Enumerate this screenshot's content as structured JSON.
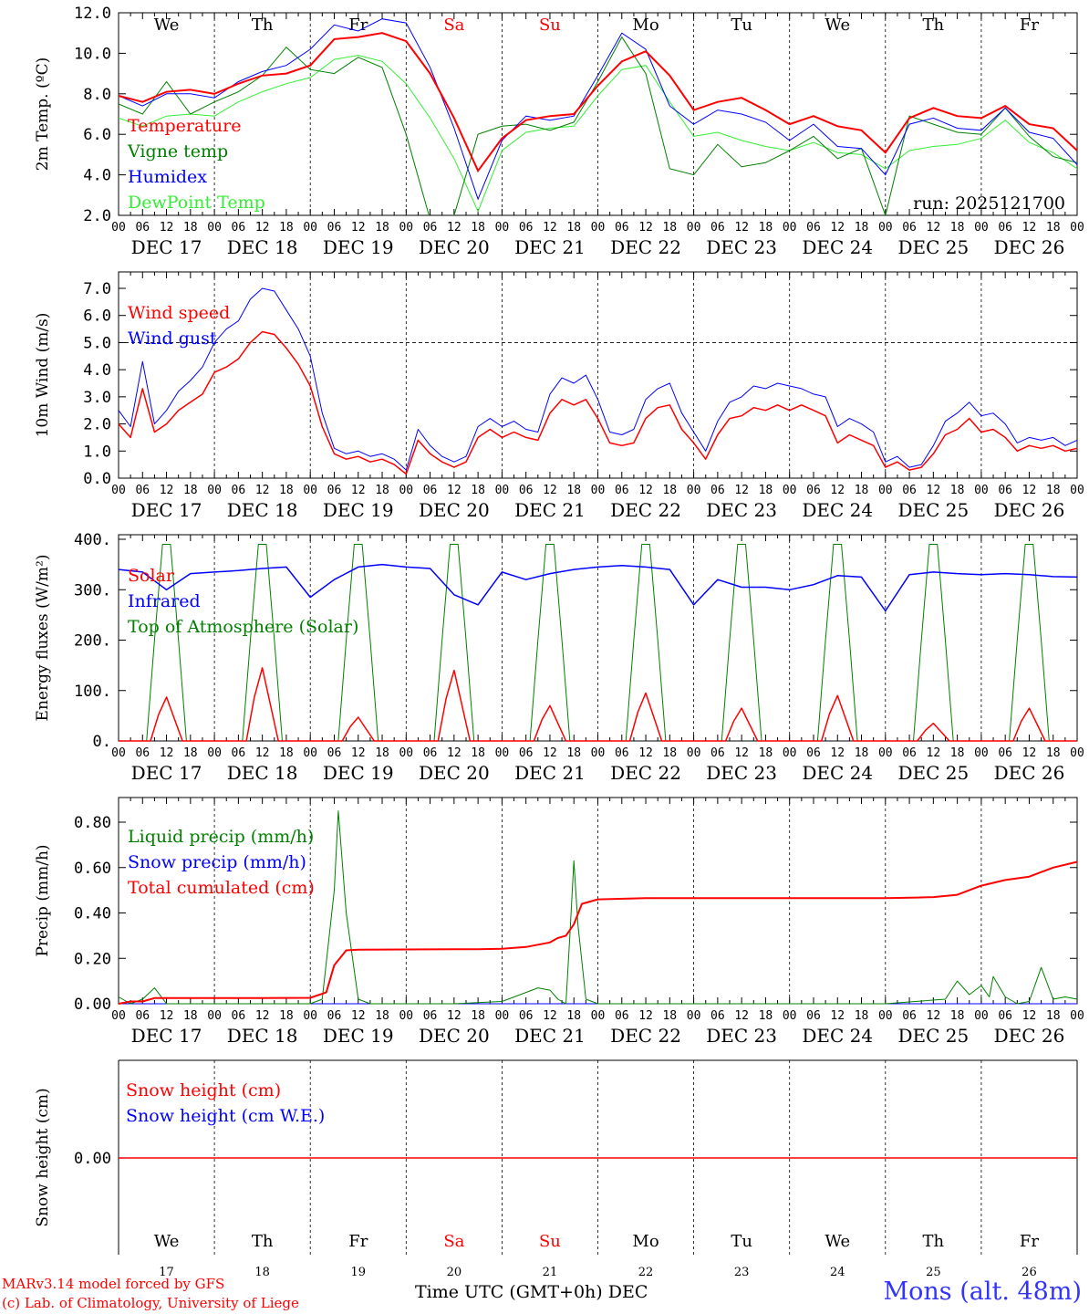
{
  "chart_data": [
    {
      "type": "line",
      "panel": "temperature",
      "ylabel": "2m Temp. (ºC)",
      "ylim": [
        2.0,
        12.0
      ],
      "yticks": [
        "2.0",
        "4.0",
        "6.0",
        "8.0",
        "10.0",
        "12.0"
      ],
      "ytick_values": [
        2,
        4,
        6,
        8,
        10,
        12
      ],
      "run_label": "run: 2025121700",
      "legend": [
        "Temperature",
        "Vigne temp",
        "Humidex",
        "DewPoint Temp"
      ],
      "x": [
        0,
        6,
        12,
        18,
        24,
        30,
        36,
        42,
        48,
        54,
        60,
        66,
        72,
        78,
        84,
        90,
        96,
        102,
        108,
        114,
        120,
        126,
        132,
        138,
        144,
        150,
        156,
        162,
        168,
        174,
        180,
        186,
        192,
        198,
        204,
        210,
        216,
        222,
        228,
        234,
        240
      ],
      "series": [
        {
          "name": "Temperature",
          "color": "#ff0000",
          "width": 2,
          "values": [
            7.9,
            7.6,
            8.1,
            8.2,
            8.0,
            8.5,
            8.9,
            9.0,
            9.4,
            10.7,
            10.8,
            11.0,
            10.6,
            9.0,
            6.8,
            4.2,
            5.8,
            6.7,
            6.9,
            7.0,
            8.4,
            9.6,
            10.1,
            8.9,
            7.2,
            7.6,
            7.8,
            7.2,
            6.5,
            6.9,
            6.4,
            6.2,
            5.1,
            6.8,
            7.3,
            6.9,
            6.8,
            7.4,
            6.5,
            6.3,
            5.2
          ]
        },
        {
          "name": "Vigne temp",
          "color": "#008000",
          "width": 1,
          "values": [
            7.5,
            7.0,
            8.6,
            7.0,
            7.6,
            8.1,
            8.9,
            10.3,
            9.2,
            9.0,
            9.8,
            9.3,
            6.0,
            1.8,
            2.0,
            6.0,
            6.4,
            6.5,
            6.2,
            6.6,
            8.6,
            10.8,
            9.0,
            4.3,
            4.0,
            5.5,
            4.4,
            4.6,
            5.2,
            5.9,
            4.8,
            5.3,
            2.0,
            6.9,
            6.5,
            6.1,
            6.0,
            7.3,
            5.9,
            4.9,
            4.6
          ]
        },
        {
          "name": "Humidex",
          "color": "#0000ff",
          "width": 1,
          "values": [
            7.9,
            7.4,
            8.0,
            8.0,
            7.8,
            8.6,
            9.1,
            9.4,
            10.2,
            11.4,
            11.1,
            11.7,
            11.5,
            9.3,
            6.3,
            2.8,
            5.7,
            6.9,
            6.7,
            6.9,
            8.9,
            11.0,
            10.2,
            7.4,
            6.5,
            7.2,
            7.0,
            6.6,
            5.7,
            6.5,
            5.4,
            5.3,
            4.0,
            6.5,
            6.8,
            6.3,
            6.2,
            7.3,
            6.1,
            5.8,
            4.5
          ]
        },
        {
          "name": "DewPoint Temp",
          "color": "#33ee33",
          "width": 1,
          "values": [
            6.8,
            6.4,
            6.9,
            7.0,
            6.9,
            7.6,
            8.1,
            8.5,
            8.8,
            9.7,
            9.9,
            9.6,
            8.5,
            6.8,
            4.8,
            2.2,
            5.2,
            6.1,
            6.3,
            6.4,
            7.9,
            9.2,
            9.4,
            7.6,
            5.9,
            6.1,
            5.7,
            5.4,
            5.2,
            5.6,
            5.1,
            5.0,
            4.3,
            5.2,
            5.4,
            5.5,
            5.8,
            6.7,
            5.6,
            5.1,
            4.3
          ]
        }
      ]
    },
    {
      "type": "line",
      "panel": "wind",
      "ylabel": "10m Wind (m/s)",
      "ylim": [
        0.0,
        7.5
      ],
      "yticks": [
        "0.0",
        "1.0",
        "2.0",
        "3.0",
        "4.0",
        "5.0",
        "6.0",
        "7.0"
      ],
      "ytick_values": [
        0,
        1,
        2,
        3,
        4,
        5,
        6,
        7
      ],
      "reference_line": 5.0,
      "legend": [
        "Wind speed",
        "Wind gust"
      ],
      "x": [
        0,
        3,
        6,
        9,
        12,
        15,
        18,
        21,
        24,
        27,
        30,
        33,
        36,
        39,
        42,
        45,
        48,
        51,
        54,
        57,
        60,
        63,
        66,
        69,
        72,
        75,
        78,
        81,
        84,
        87,
        90,
        93,
        96,
        99,
        102,
        105,
        108,
        111,
        114,
        117,
        120,
        123,
        126,
        129,
        132,
        135,
        138,
        141,
        144,
        147,
        150,
        153,
        156,
        159,
        162,
        165,
        168,
        171,
        174,
        177,
        180,
        183,
        186,
        189,
        192,
        195,
        198,
        201,
        204,
        207,
        210,
        213,
        216,
        219,
        222,
        225,
        228,
        231,
        234,
        237,
        240
      ],
      "series": [
        {
          "name": "Wind speed",
          "color": "#ff0000",
          "width": 1.5,
          "values": [
            2.0,
            1.5,
            3.3,
            1.7,
            2.0,
            2.5,
            2.8,
            3.1,
            3.9,
            4.1,
            4.4,
            5.0,
            5.4,
            5.3,
            4.8,
            4.2,
            3.4,
            1.9,
            0.9,
            0.7,
            0.8,
            0.6,
            0.7,
            0.5,
            0.15,
            1.4,
            0.9,
            0.6,
            0.4,
            0.6,
            1.5,
            1.8,
            1.5,
            1.7,
            1.5,
            1.4,
            2.4,
            2.9,
            2.7,
            2.9,
            2.2,
            1.3,
            1.2,
            1.3,
            2.2,
            2.6,
            2.7,
            1.8,
            1.3,
            0.7,
            1.6,
            2.2,
            2.3,
            2.6,
            2.5,
            2.7,
            2.5,
            2.7,
            2.5,
            2.3,
            1.3,
            1.6,
            1.4,
            1.2,
            0.4,
            0.6,
            0.3,
            0.4,
            0.9,
            1.6,
            1.8,
            2.2,
            1.7,
            1.8,
            1.5,
            1.0,
            1.2,
            1.1,
            1.2,
            1.0,
            1.1
          ]
        },
        {
          "name": "Wind gust",
          "color": "#0000ff",
          "width": 1,
          "values": [
            2.5,
            1.9,
            4.3,
            2.0,
            2.5,
            3.2,
            3.6,
            4.1,
            5.0,
            5.5,
            5.8,
            6.6,
            7.0,
            6.9,
            6.2,
            5.5,
            4.5,
            2.4,
            1.1,
            0.9,
            1.0,
            0.8,
            0.9,
            0.7,
            0.3,
            1.8,
            1.2,
            0.8,
            0.6,
            0.8,
            1.9,
            2.2,
            1.9,
            2.1,
            1.8,
            1.7,
            3.1,
            3.7,
            3.5,
            3.8,
            2.9,
            1.7,
            1.6,
            1.8,
            2.9,
            3.3,
            3.5,
            2.4,
            1.7,
            1.0,
            2.1,
            2.8,
            3.0,
            3.4,
            3.3,
            3.5,
            3.4,
            3.3,
            3.1,
            3.0,
            1.9,
            2.2,
            2.0,
            1.7,
            0.6,
            0.8,
            0.4,
            0.5,
            1.2,
            2.1,
            2.4,
            2.8,
            2.3,
            2.4,
            2.0,
            1.3,
            1.5,
            1.4,
            1.5,
            1.2,
            1.4
          ]
        }
      ]
    },
    {
      "type": "line",
      "panel": "energy",
      "ylabel": "Energy fluxes (W/m²)",
      "ylim": [
        0,
        400
      ],
      "yticks": [
        "0.",
        "100.",
        "200.",
        "300.",
        "400."
      ],
      "ytick_values": [
        0,
        100,
        200,
        300,
        400
      ],
      "legend": [
        "Solar",
        "Infrared",
        "Top of Atmosphere (Solar)"
      ],
      "solar_peaks": [
        87,
        145,
        47,
        140,
        70,
        95,
        65,
        90,
        35,
        65
      ],
      "toa_peak": 390,
      "infrared": {
        "x": [
          0,
          6,
          12,
          18,
          24,
          30,
          36,
          42,
          48,
          54,
          60,
          66,
          72,
          78,
          84,
          90,
          96,
          102,
          108,
          114,
          120,
          126,
          132,
          138,
          144,
          150,
          156,
          162,
          168,
          174,
          180,
          186,
          192,
          198,
          204,
          210,
          216,
          222,
          228,
          234,
          240
        ],
        "values": [
          340,
          335,
          300,
          332,
          335,
          338,
          342,
          345,
          285,
          320,
          345,
          350,
          345,
          342,
          290,
          270,
          335,
          320,
          332,
          340,
          345,
          348,
          345,
          340,
          270,
          320,
          305,
          305,
          300,
          310,
          328,
          325,
          258,
          330,
          335,
          332,
          330,
          332,
          330,
          326,
          325
        ]
      },
      "series_colors": {
        "Solar": "#ff0000",
        "Infrared": "#0000ff",
        "Top of Atmosphere (Solar)": "#008000"
      }
    },
    {
      "type": "line",
      "panel": "precip",
      "ylabel": "Precip (mm/h)",
      "ylim": [
        0.0,
        0.85
      ],
      "yticks": [
        "0.00",
        "0.20",
        "0.40",
        "0.60",
        "0.80"
      ],
      "ytick_values": [
        0,
        0.2,
        0.4,
        0.6,
        0.8
      ],
      "legend": [
        "Liquid precip (mm/h)",
        "Snow precip (mm/h)",
        "Total cumulated (cm)"
      ],
      "series": [
        {
          "name": "Total cumulated (cm)",
          "color": "#ff0000",
          "width": 2,
          "x": [
            0,
            3,
            6,
            9,
            12,
            24,
            36,
            48,
            52,
            54,
            57,
            60,
            72,
            84,
            90,
            96,
            102,
            108,
            110,
            112,
            114,
            116,
            120,
            132,
            144,
            156,
            168,
            180,
            192,
            200,
            204,
            210,
            216,
            222,
            228,
            231,
            234,
            240
          ],
          "values": [
            0.0,
            0.01,
            0.01,
            0.025,
            0.025,
            0.025,
            0.025,
            0.026,
            0.05,
            0.17,
            0.235,
            0.238,
            0.239,
            0.24,
            0.24,
            0.242,
            0.25,
            0.27,
            0.29,
            0.3,
            0.35,
            0.44,
            0.46,
            0.465,
            0.465,
            0.465,
            0.465,
            0.465,
            0.465,
            0.468,
            0.47,
            0.48,
            0.52,
            0.545,
            0.56,
            0.58,
            0.6,
            0.625
          ]
        },
        {
          "name": "Liquid precip (mm/h)",
          "color": "#008000",
          "width": 1,
          "x": [
            0,
            3,
            6,
            9,
            12,
            48,
            51,
            54,
            55,
            57,
            60,
            63,
            84,
            96,
            102,
            105,
            108,
            110,
            112,
            113,
            114,
            115,
            117,
            120,
            126,
            192,
            207,
            210,
            213,
            216,
            218,
            219,
            222,
            225,
            228,
            231,
            234,
            237,
            240
          ],
          "values": [
            0.03,
            0.0,
            0.02,
            0.07,
            0.0,
            0.0,
            0.02,
            0.5,
            0.85,
            0.4,
            0.02,
            0.0,
            0.0,
            0.01,
            0.05,
            0.07,
            0.06,
            0.02,
            0.0,
            0.3,
            0.63,
            0.35,
            0.02,
            0.0,
            0.0,
            0.0,
            0.02,
            0.1,
            0.04,
            0.08,
            0.03,
            0.12,
            0.03,
            0.0,
            0.01,
            0.16,
            0.02,
            0.03,
            0.02
          ]
        },
        {
          "name": "Snow precip (mm/h)",
          "color": "#0000ff",
          "width": 1,
          "x": [
            0,
            240
          ],
          "values": [
            0.0,
            0.0
          ]
        }
      ]
    },
    {
      "type": "line",
      "panel": "snow",
      "ylabel": "Snow height (cm)",
      "yticks": [
        "0.00"
      ],
      "ytick_values": [
        0
      ],
      "legend": [
        "Snow height (cm)",
        "Snow height (cm W.E.)"
      ],
      "series": [
        {
          "name": "Snow height (cm)",
          "color": "#ff0000",
          "values": [
            0,
            0
          ]
        }
      ]
    }
  ],
  "x_axis": {
    "hour_ticks": [
      "00",
      "06",
      "12",
      "18"
    ],
    "end_tick": "00",
    "dates": [
      "DEC 17",
      "DEC 18",
      "DEC 19",
      "DEC 20",
      "DEC 21",
      "DEC 22",
      "DEC 23",
      "DEC 24",
      "DEC 25",
      "DEC 26"
    ],
    "days": [
      "We",
      "Th",
      "Fr",
      "Sa",
      "Su",
      "Mo",
      "Tu",
      "We",
      "Th",
      "Fr"
    ],
    "weekend_days": [
      "Sa",
      "Su"
    ],
    "day_numbers": [
      "17",
      "18",
      "19",
      "20",
      "21",
      "22",
      "23",
      "24",
      "25",
      "26"
    ],
    "title": "Time UTC (GMT+0h)",
    "month": "DEC"
  },
  "footer": {
    "credit_line1": "MARv3.14 model forced by GFS",
    "credit_line2": "(c) Lab. of Climatology, University of Liege",
    "location": "Mons (alt. 48m)"
  },
  "colors": {
    "red": "#ff0000",
    "green": "#008000",
    "blue": "#0000ff",
    "lightgreen": "#33ee33",
    "location": "#3333ff"
  }
}
